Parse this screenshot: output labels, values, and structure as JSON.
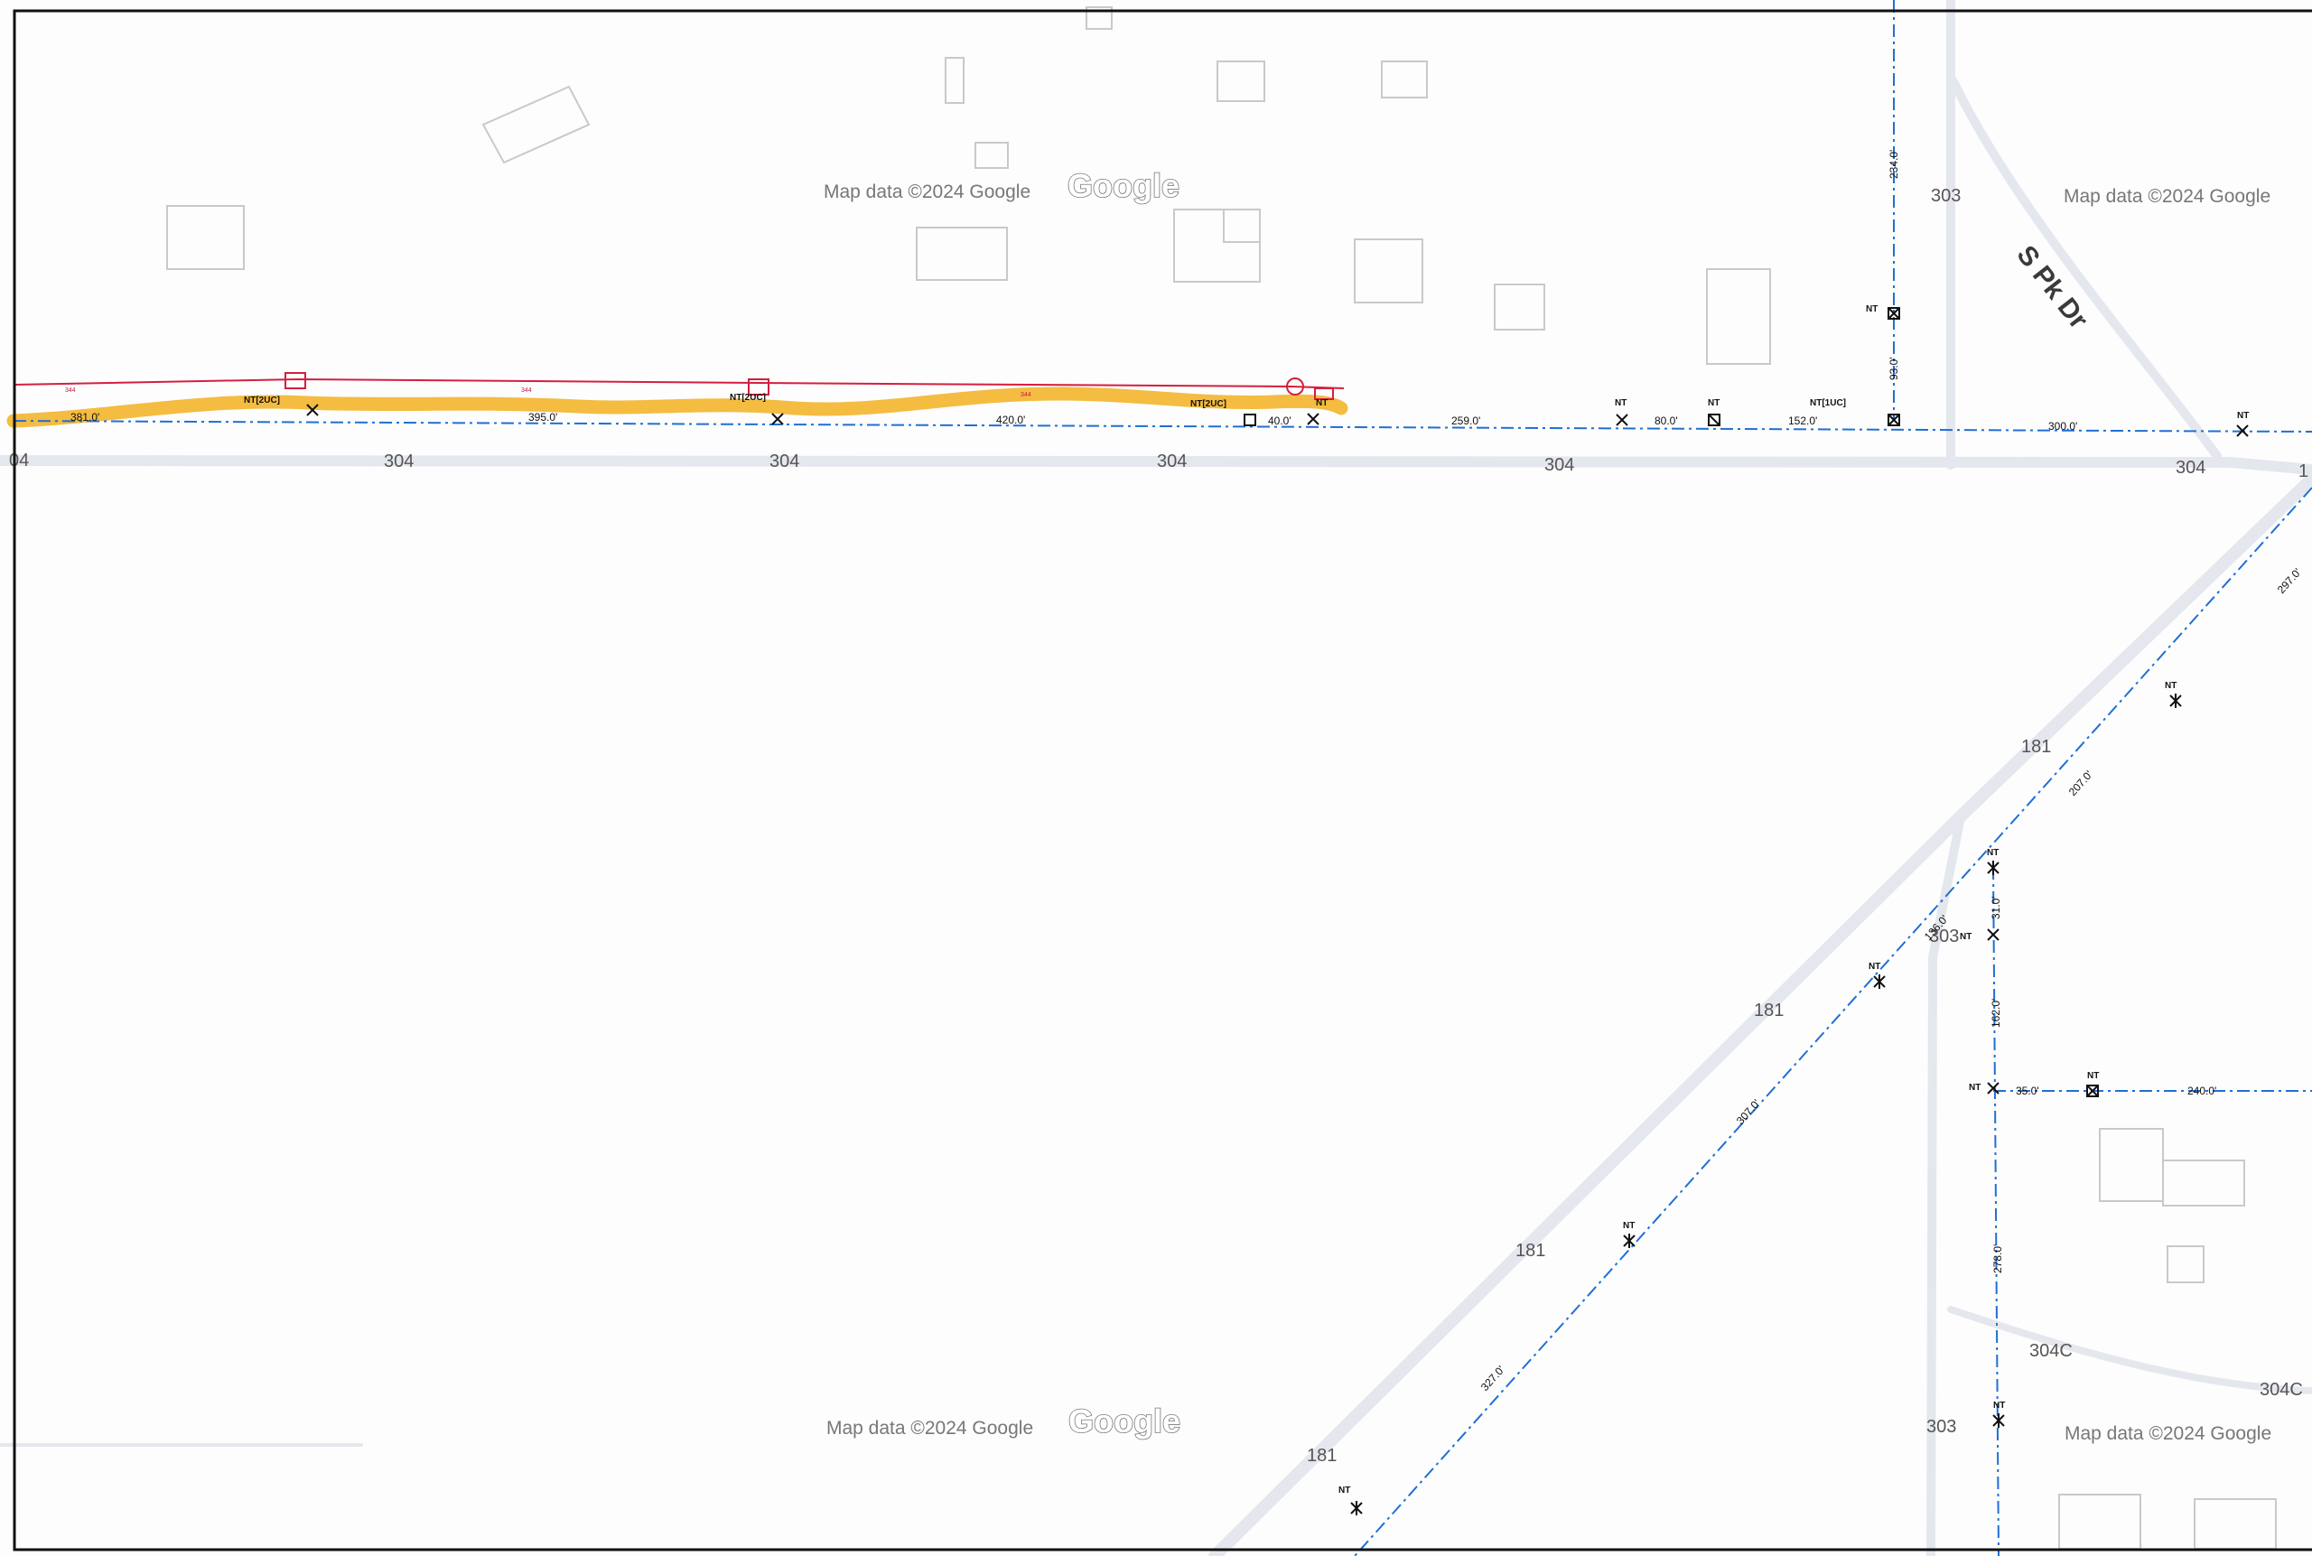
{
  "colors": {
    "road": "#e5e7ee",
    "building": "#c9c9c9",
    "cable": "#1f6fd6",
    "proposed_line": "#d41f3f",
    "highlight": "#f2b01e",
    "label": "#555555"
  },
  "map": {
    "attribution": "Map data ©2024 Google",
    "logo": "Google",
    "street_name": "S Pk Dr",
    "route_labels": {
      "r304": "304",
      "r303": "303",
      "r181": "181",
      "r304c": "304C",
      "r1": "1"
    }
  },
  "markup": {
    "nt": "NT",
    "nt_2uc": "NT[2UC]",
    "nt_1uc": "NT[1UC]",
    "red_small": "344",
    "spans": {
      "s381": "381.0'",
      "s395": "395.0'",
      "s420": "420.0'",
      "s40": "40.0'",
      "s259": "259.0'",
      "s80": "80.0'",
      "s152": "152.0'",
      "s234": "234.0'",
      "s93": "93.0'",
      "s300": "300.0'",
      "s297": "297.0'",
      "s207": "207.0'",
      "s31": "31.0'",
      "s136": "136.0'",
      "s162": "162.0'",
      "s35": "35.0'",
      "s240": "240.0'",
      "s307": "307.0'",
      "s278": "278.0'",
      "s327": "327.0'"
    }
  }
}
